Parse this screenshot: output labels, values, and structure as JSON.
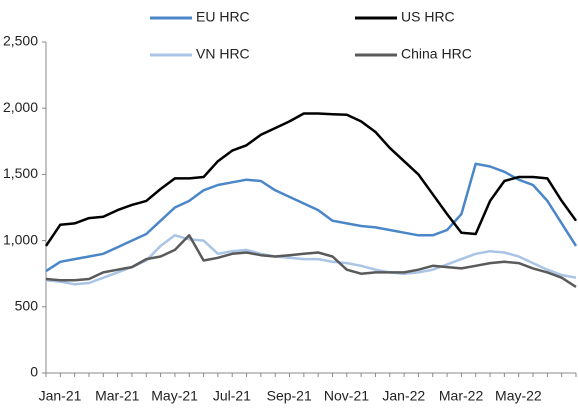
{
  "chart_data": {
    "type": "line",
    "categories": [
      "Jan-21",
      null,
      null,
      null,
      "Mar-21",
      null,
      null,
      null,
      "May-21",
      null,
      null,
      null,
      "Jul-21",
      null,
      null,
      null,
      "Sep-21",
      null,
      null,
      null,
      "Nov-21",
      null,
      null,
      null,
      "Jan-22",
      null,
      null,
      null,
      "Mar-22",
      null,
      null,
      null,
      "May-22",
      null,
      null,
      null,
      null,
      null
    ],
    "series": [
      {
        "name": "EU HRC",
        "color": "#4a86c8",
        "values": [
          770,
          840,
          860,
          880,
          900,
          950,
          1000,
          1050,
          1150,
          1250,
          1300,
          1380,
          1420,
          1440,
          1460,
          1450,
          1380,
          1330,
          1280,
          1230,
          1150,
          1130,
          1110,
          1100,
          1080,
          1060,
          1040,
          1040,
          1080,
          1200,
          1580,
          1560,
          1520,
          1460,
          1420,
          1300,
          1130,
          960
        ]
      },
      {
        "name": "US HRC",
        "color": "#000000",
        "values": [
          960,
          1120,
          1130,
          1170,
          1180,
          1230,
          1270,
          1300,
          1390,
          1470,
          1470,
          1480,
          1600,
          1680,
          1720,
          1800,
          1850,
          1900,
          1960,
          1960,
          1955,
          1950,
          1900,
          1820,
          1700,
          1600,
          1500,
          1350,
          1200,
          1060,
          1050,
          1300,
          1450,
          1480,
          1480,
          1470,
          1300,
          1150
        ]
      },
      {
        "name": "VN HRC",
        "color": "#aac4e6",
        "values": [
          700,
          690,
          670,
          680,
          720,
          760,
          800,
          850,
          960,
          1040,
          1010,
          1000,
          900,
          920,
          930,
          900,
          880,
          870,
          860,
          860,
          840,
          830,
          810,
          780,
          760,
          750,
          760,
          780,
          820,
          860,
          900,
          920,
          910,
          880,
          830,
          780,
          740,
          720
        ]
      },
      {
        "name": "China HRC",
        "color": "#5a5a5a",
        "values": [
          710,
          700,
          700,
          710,
          760,
          780,
          800,
          860,
          880,
          930,
          1040,
          850,
          870,
          900,
          910,
          890,
          880,
          890,
          900,
          910,
          880,
          780,
          750,
          760,
          760,
          760,
          780,
          810,
          800,
          790,
          810,
          830,
          840,
          830,
          790,
          760,
          720,
          650
        ]
      }
    ],
    "ylim": [
      0,
      2500
    ],
    "yticks": [
      0,
      {
        "value": 500,
        "label": "500"
      },
      {
        "value": 1000,
        "label": "1,000"
      },
      {
        "value": 1500,
        "label": "1,500"
      },
      {
        "value": 2000,
        "label": "2,000"
      },
      {
        "value": 2500,
        "label": "2,500"
      }
    ],
    "grid": false,
    "legend": "top"
  }
}
